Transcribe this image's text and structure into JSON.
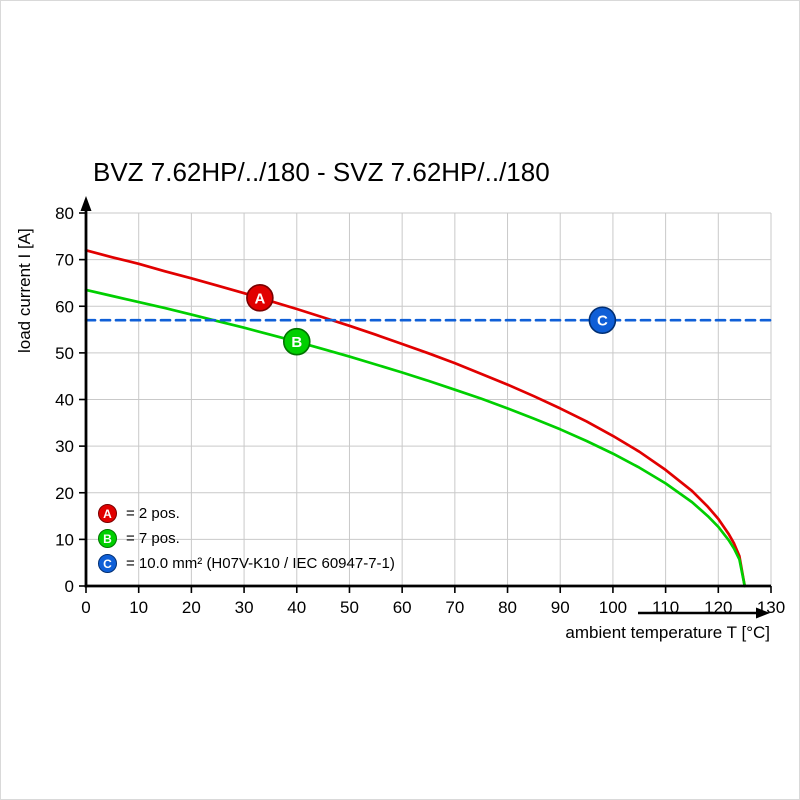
{
  "chart_data": {
    "type": "line",
    "title": "BVZ 7.62HP/../180 - SVZ 7.62HP/../180",
    "xlabel": "ambient temperature T [°C]",
    "ylabel": "load current I [A]",
    "xlim": [
      0,
      130
    ],
    "ylim": [
      0,
      80
    ],
    "xticks": [
      0,
      10,
      20,
      30,
      40,
      50,
      60,
      70,
      80,
      90,
      100,
      110,
      120,
      130
    ],
    "yticks": [
      0,
      10,
      20,
      30,
      40,
      50,
      60,
      70,
      80
    ],
    "grid": true,
    "series": [
      {
        "name": "a",
        "label": "2 pos.",
        "color": "#e10000",
        "style": "solid",
        "points": [
          [
            0,
            72
          ],
          [
            5,
            70.5
          ],
          [
            10,
            69.1
          ],
          [
            15,
            67.5
          ],
          [
            20,
            66.0
          ],
          [
            25,
            64.4
          ],
          [
            30,
            62.8
          ],
          [
            33,
            61.8
          ],
          [
            35,
            61.1
          ],
          [
            40,
            59.4
          ],
          [
            45,
            57.6
          ],
          [
            50,
            55.8
          ],
          [
            55,
            53.9
          ],
          [
            60,
            51.9
          ],
          [
            65,
            49.9
          ],
          [
            70,
            47.8
          ],
          [
            75,
            45.5
          ],
          [
            80,
            43.2
          ],
          [
            85,
            40.7
          ],
          [
            90,
            38.1
          ],
          [
            95,
            35.3
          ],
          [
            100,
            32.2
          ],
          [
            105,
            28.8
          ],
          [
            110,
            24.9
          ],
          [
            115,
            20.4
          ],
          [
            118,
            17.0
          ],
          [
            120,
            14.4
          ],
          [
            122,
            11.1
          ],
          [
            123,
            9.1
          ],
          [
            124,
            6.4
          ],
          [
            125,
            0
          ]
        ]
      },
      {
        "name": "b",
        "label": "7 pos.",
        "color": "#00cf00",
        "style": "solid",
        "points": [
          [
            0,
            63.5
          ],
          [
            5,
            62.2
          ],
          [
            10,
            60.9
          ],
          [
            15,
            59.6
          ],
          [
            20,
            58.2
          ],
          [
            25,
            56.8
          ],
          [
            30,
            55.4
          ],
          [
            35,
            53.9
          ],
          [
            40,
            52.4
          ],
          [
            45,
            50.8
          ],
          [
            50,
            49.2
          ],
          [
            55,
            47.5
          ],
          [
            60,
            45.8
          ],
          [
            65,
            44.0
          ],
          [
            70,
            42.1
          ],
          [
            75,
            40.2
          ],
          [
            80,
            38.1
          ],
          [
            85,
            35.9
          ],
          [
            90,
            33.6
          ],
          [
            95,
            31.1
          ],
          [
            100,
            28.4
          ],
          [
            105,
            25.4
          ],
          [
            110,
            22.0
          ],
          [
            115,
            18.0
          ],
          [
            118,
            15.0
          ],
          [
            120,
            12.7
          ],
          [
            122,
            9.8
          ],
          [
            123,
            8.0
          ],
          [
            124,
            5.7
          ],
          [
            125,
            0
          ]
        ]
      },
      {
        "name": "c",
        "label": "10.0 mm² (H07V-K10 / IEC 60947-7-1)",
        "color": "#0f5fd7",
        "style": "dashed",
        "points": [
          [
            0,
            57
          ],
          [
            130,
            57
          ]
        ]
      }
    ],
    "markers": [
      {
        "label": "A",
        "x": 33,
        "y": 61.8,
        "color": "#e10000",
        "edge": "#7a0000"
      },
      {
        "label": "B",
        "x": 40,
        "y": 52.4,
        "color": "#00cf00",
        "edge": "#007300"
      },
      {
        "label": "C",
        "x": 98,
        "y": 57.0,
        "color": "#0f5fd7",
        "edge": "#012f73"
      }
    ],
    "legend": [
      {
        "label": "A",
        "text": "= 2 pos.",
        "color": "#e10000",
        "edge": "#7a0000"
      },
      {
        "label": "B",
        "text": "= 7 pos.",
        "color": "#00cf00",
        "edge": "#007300"
      },
      {
        "label": "C",
        "text": "= 10.0 mm² (H07V-K10 / IEC 60947-7-1)",
        "color": "#0f5fd7",
        "edge": "#012f73"
      }
    ],
    "legend_position": "bottom-left",
    "dashed_line_value": 57
  }
}
